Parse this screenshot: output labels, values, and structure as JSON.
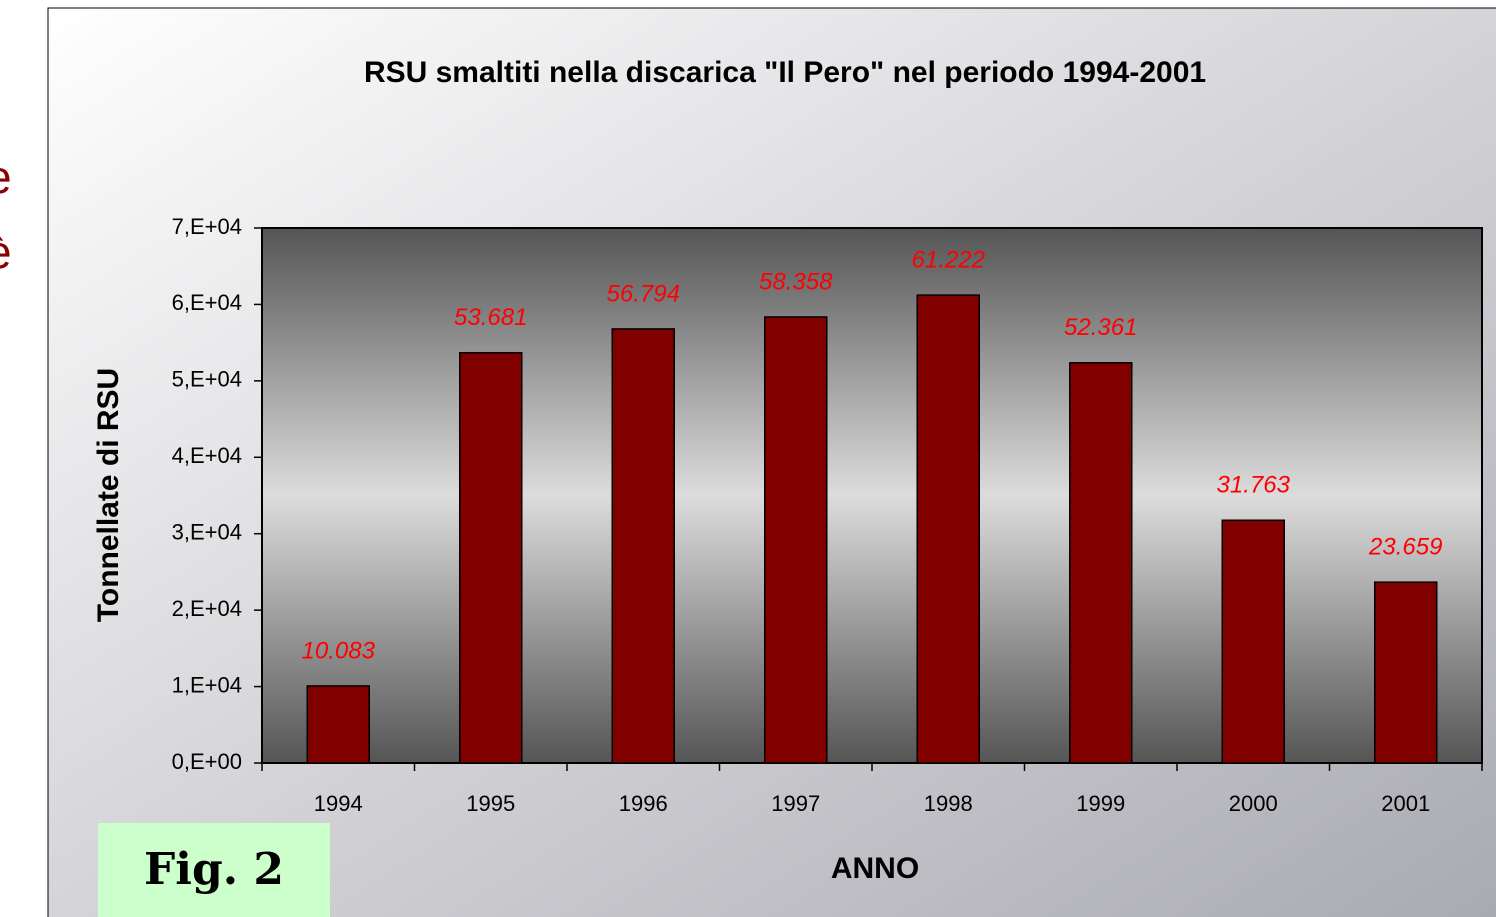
{
  "side_text": [
    "e",
    "è"
  ],
  "figure_label": "Fig. 2",
  "chart_data": {
    "type": "bar",
    "title": "RSU smaltiti nella discarica \"Il Pero\" nel periodo 1994-2001",
    "xlabel": "ANNO",
    "ylabel": "Tonnellate di RSU",
    "categories": [
      "1994",
      "1995",
      "1996",
      "1997",
      "1998",
      "1999",
      "2000",
      "2001"
    ],
    "values": [
      10083,
      53681,
      56794,
      58358,
      61222,
      52361,
      31763,
      23659
    ],
    "value_labels": [
      "10.083",
      "53.681",
      "56.794",
      "58.358",
      "61.222",
      "52.361",
      "31.763",
      "23.659"
    ],
    "color": "#800000",
    "label_color": "#ff0000",
    "ylim": [
      0,
      70000
    ],
    "yticks": [
      {
        "value": 0,
        "label": "0,E+00"
      },
      {
        "value": 10000,
        "label": "1,E+04"
      },
      {
        "value": 20000,
        "label": "2,E+04"
      },
      {
        "value": 30000,
        "label": "3,E+04"
      },
      {
        "value": 40000,
        "label": "4,E+04"
      },
      {
        "value": 50000,
        "label": "5,E+04"
      },
      {
        "value": 60000,
        "label": "6,E+04"
      },
      {
        "value": 70000,
        "label": "7,E+04"
      }
    ],
    "grid": false
  }
}
